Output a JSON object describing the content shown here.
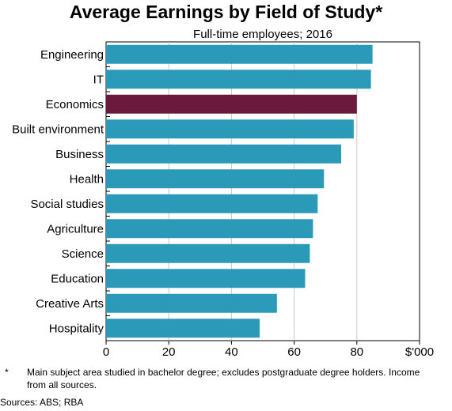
{
  "chart_data": {
    "type": "bar",
    "orientation": "horizontal",
    "title": "Average Earnings by Field of Study*",
    "subtitle": "Full-time employees; 2016",
    "categories": [
      "Engineering",
      "IT",
      "Economics",
      "Built environment",
      "Business",
      "Health",
      "Social studies",
      "Agriculture",
      "Science",
      "Education",
      "Creative Arts",
      "Hospitality"
    ],
    "values": [
      85,
      84.5,
      80,
      79,
      75,
      69.5,
      67.5,
      66,
      65,
      63.5,
      54.5,
      49
    ],
    "highlight_category": "Economics",
    "x_ticks": [
      "0",
      "20",
      "40",
      "60",
      "80",
      "$'000"
    ],
    "xlim": [
      0,
      100
    ],
    "grid": true,
    "colors": {
      "bar": "#2A9AB8",
      "highlight": "#6B1A3E",
      "grid": "#C8C8C8",
      "axis": "#000000"
    }
  },
  "footnote": {
    "mark": "*",
    "text": "Main subject area studied in bachelor degree; excludes postgraduate degree holders. Income from all sources."
  },
  "sources": "Sources: ABS; RBA"
}
